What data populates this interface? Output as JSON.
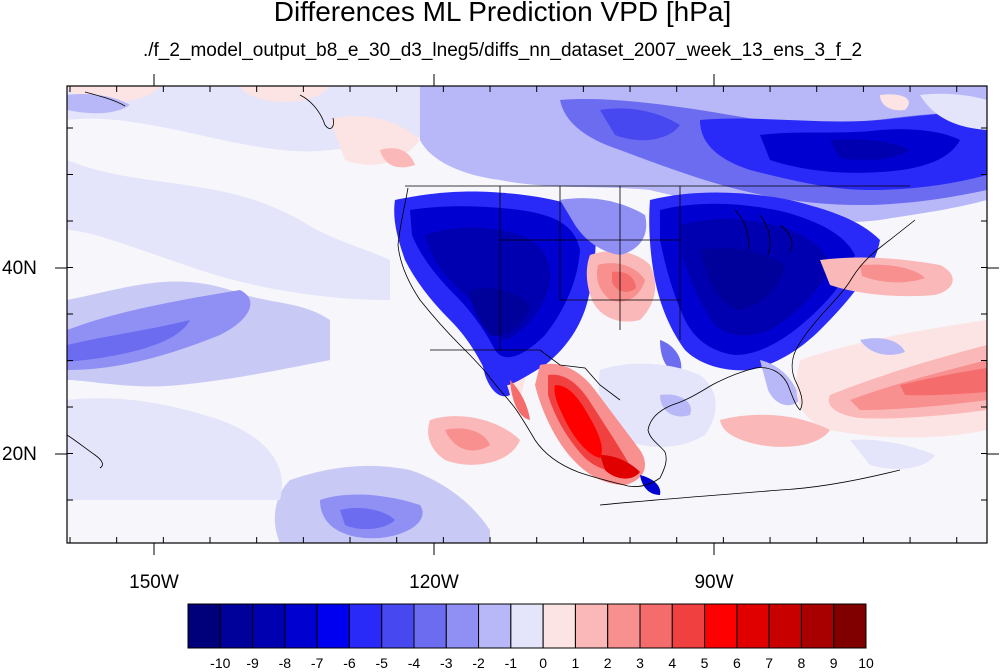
{
  "title": "Differences ML Prediction VPD [hPa]",
  "subtitle": "./f_2_model_output_b8_e_30_d3_lneg5/diffs_nn_dataset_2007_week_13_ens_3_f_2",
  "lat_labels": [
    "40N",
    "20N"
  ],
  "lon_labels": [
    "150W",
    "120W",
    "90W"
  ],
  "colorbar": {
    "labels": [
      "-10",
      "-9",
      "-8",
      "-7",
      "-6",
      "-5",
      "-4",
      "-3",
      "-2",
      "-1",
      "0",
      "1",
      "2",
      "3",
      "4",
      "5",
      "6",
      "7",
      "8",
      "9",
      "10"
    ],
    "colors": [
      "#00007a",
      "#00009a",
      "#0000b0",
      "#0000d0",
      "#0000f0",
      "#2a2af8",
      "#4848f0",
      "#6c6cf0",
      "#9090f4",
      "#b8b8f8",
      "#e4e4fa",
      "#fde4e4",
      "#fbb8b8",
      "#f89090",
      "#f46c6c",
      "#f04040",
      "#ff0000",
      "#e00000",
      "#c80000",
      "#a80000",
      "#800000"
    ],
    "range": [
      -10,
      10
    ]
  },
  "map_extent": {
    "lon": [
      -160,
      -62
    ],
    "lat": [
      11,
      58
    ]
  }
}
